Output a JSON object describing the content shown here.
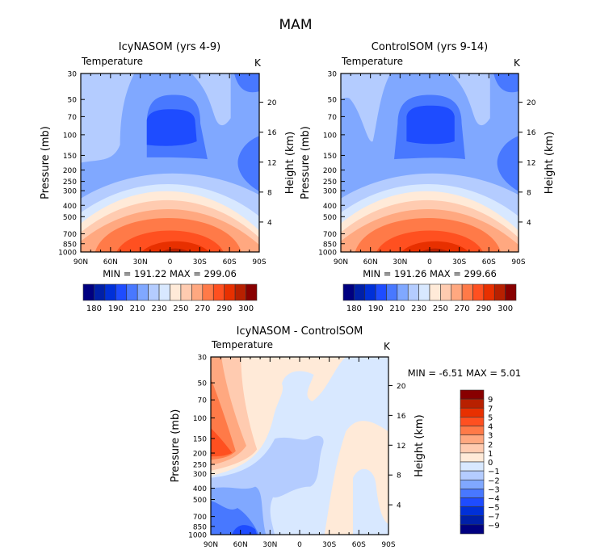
{
  "figure_title": "MAM",
  "palette": [
    "#000080",
    "#0020a8",
    "#0030d8",
    "#1e4cff",
    "#4878ff",
    "#80a8ff",
    "#b4ccff",
    "#d8e8ff",
    "#ffead8",
    "#ffcbb0",
    "#ffa880",
    "#ff7a48",
    "#ff5020",
    "#e83000",
    "#b82000",
    "#880000"
  ],
  "chart_data": [
    {
      "type": "heatmap",
      "subtype": "filled-contour",
      "title": "IcyNASOM (yrs 4-9)",
      "left_label": "Temperature",
      "right_label": "K",
      "ylabel": "Pressure (mb)",
      "ylabel_right": "Height (km)",
      "x_ticks": [
        "90N",
        "60N",
        "30N",
        "0",
        "30S",
        "60S",
        "90S"
      ],
      "y_ticks": [
        "30",
        "50",
        "70",
        "100",
        "150",
        "200",
        "250",
        "300",
        "400",
        "500",
        "700",
        "850",
        "1000"
      ],
      "y_right_ticks": [
        "4",
        "8",
        "12",
        "16",
        "20"
      ],
      "yscale": "log",
      "ylim": [
        1000,
        30
      ],
      "stats": "MIN = 191.22   MAX = 299.06",
      "min": 191.22,
      "max": 299.06,
      "colorbar_labels": [
        "180",
        "190",
        "210",
        "230",
        "250",
        "270",
        "290",
        "300"
      ],
      "colorbar_orientation": "horizontal"
    },
    {
      "type": "heatmap",
      "subtype": "filled-contour",
      "title": "ControlSOM (yrs 9-14)",
      "left_label": "Temperature",
      "right_label": "K",
      "ylabel": "Pressure (mb)",
      "ylabel_right": "Height (km)",
      "x_ticks": [
        "90N",
        "60N",
        "30N",
        "0",
        "30S",
        "60S",
        "90S"
      ],
      "y_ticks": [
        "30",
        "50",
        "70",
        "100",
        "150",
        "200",
        "250",
        "300",
        "400",
        "500",
        "700",
        "850",
        "1000"
      ],
      "y_right_ticks": [
        "4",
        "8",
        "12",
        "16",
        "20"
      ],
      "yscale": "log",
      "ylim": [
        1000,
        30
      ],
      "stats": "MIN = 191.26   MAX = 299.66",
      "min": 191.26,
      "max": 299.66,
      "colorbar_labels": [
        "180",
        "190",
        "210",
        "230",
        "250",
        "270",
        "290",
        "300"
      ],
      "colorbar_orientation": "horizontal"
    },
    {
      "type": "heatmap",
      "subtype": "filled-contour",
      "title": "IcyNASOM - ControlSOM",
      "left_label": "Temperature",
      "right_label": "K",
      "ylabel": "Pressure (mb)",
      "ylabel_right": "Height (km)",
      "x_ticks": [
        "90N",
        "60N",
        "30N",
        "0",
        "30S",
        "60S",
        "90S"
      ],
      "y_ticks": [
        "30",
        "50",
        "70",
        "100",
        "150",
        "200",
        "250",
        "300",
        "400",
        "500",
        "700",
        "850",
        "1000"
      ],
      "y_right_ticks": [
        "4",
        "8",
        "12",
        "16",
        "20"
      ],
      "yscale": "log",
      "ylim": [
        1000,
        30
      ],
      "stats": "MIN =   -6.51   MAX =    5.01",
      "min": -6.51,
      "max": 5.01,
      "colorbar_labels": [
        "9",
        "7",
        "5",
        "4",
        "3",
        "2",
        "1",
        "0",
        "-1",
        "-2",
        "-3",
        "-4",
        "-5",
        "-7",
        "-9"
      ],
      "colorbar_orientation": "vertical"
    }
  ]
}
